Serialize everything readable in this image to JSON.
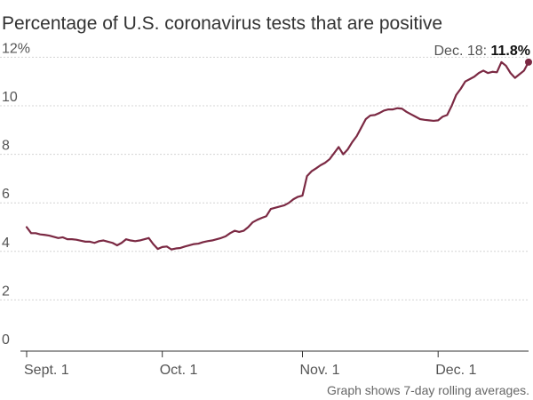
{
  "chart_data": {
    "type": "line",
    "title": "Percentage of U.S. coronavirus tests that are positive",
    "xlabel": "",
    "ylabel": "",
    "ylim": [
      0,
      12
    ],
    "yticks": [
      0,
      2,
      4,
      6,
      8,
      10,
      12
    ],
    "ytick_labels": [
      "0",
      "2",
      "4",
      "6",
      "8",
      "10",
      "12%"
    ],
    "xticks": [
      {
        "day": 0,
        "label": "Sept. 1"
      },
      {
        "day": 30,
        "label": "Oct. 1"
      },
      {
        "day": 61,
        "label": "Nov. 1"
      },
      {
        "day": 91,
        "label": "Dec. 1"
      }
    ],
    "x_unit": "days since Sept. 1",
    "series": [
      {
        "name": "7-day rolling average positive rate (%)",
        "color": "#7b2943",
        "values": [
          5.0,
          4.75,
          4.75,
          4.7,
          4.68,
          4.65,
          4.6,
          4.55,
          4.58,
          4.5,
          4.5,
          4.48,
          4.44,
          4.4,
          4.4,
          4.35,
          4.42,
          4.45,
          4.4,
          4.35,
          4.25,
          4.35,
          4.5,
          4.45,
          4.42,
          4.45,
          4.5,
          4.55,
          4.3,
          4.1,
          4.18,
          4.2,
          4.08,
          4.12,
          4.14,
          4.2,
          4.25,
          4.3,
          4.32,
          4.38,
          4.42,
          4.45,
          4.5,
          4.55,
          4.62,
          4.75,
          4.85,
          4.8,
          4.85,
          5.0,
          5.2,
          5.3,
          5.38,
          5.45,
          5.75,
          5.8,
          5.85,
          5.9,
          6.0,
          6.15,
          6.25,
          6.3,
          7.1,
          7.3,
          7.42,
          7.55,
          7.65,
          7.8,
          8.05,
          8.3,
          8.0,
          8.2,
          8.5,
          8.75,
          9.1,
          9.45,
          9.6,
          9.62,
          9.7,
          9.8,
          9.85,
          9.85,
          9.9,
          9.88,
          9.75,
          9.65,
          9.55,
          9.45,
          9.42,
          9.4,
          9.38,
          9.4,
          9.55,
          9.62,
          10.0,
          10.45,
          10.7,
          11.0,
          11.1,
          11.2,
          11.35,
          11.45,
          11.35,
          11.4,
          11.38,
          11.8,
          11.65,
          11.35,
          11.15,
          11.3,
          11.45,
          11.8
        ]
      }
    ],
    "end_annotation": {
      "date": "Dec. 18",
      "separator": ":",
      "value": "11.8%"
    },
    "footnote": "Graph shows 7-day rolling averages."
  },
  "colors": {
    "line": "#7b2943",
    "gridline": "#d4d4d4",
    "axis": "#333333",
    "text": "#555555"
  }
}
